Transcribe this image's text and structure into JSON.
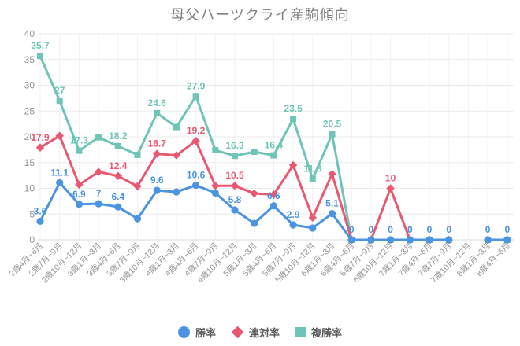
{
  "title": "母父ハーツクライ産駒傾向",
  "colors": {
    "background": "#ffffff",
    "title_text": "#7f7f7f",
    "axis_text": "#949494",
    "grid_line": "#ebebeb",
    "zero_line": "#d9d9d9",
    "vertical_grid": "#f2f2f2",
    "legend_text": "#595959",
    "win_rate_blue": "#4b94e2",
    "quinella_red": "#e85871",
    "show_teal": "#6ec4b6"
  },
  "chart_data": {
    "type": "line",
    "title": "母父ハーツクライ産駒傾向",
    "legend_position": "bottom",
    "grid": true,
    "x_axis": {
      "label_rotation": -45
    },
    "y_axis": {
      "min": 0,
      "max": 40,
      "step": 5,
      "tick_labels": [
        "0",
        "5",
        "10",
        "15",
        "20",
        "25",
        "30",
        "35",
        "40"
      ]
    },
    "categories": [
      "2歳4月~6月",
      "2歳7月~9月",
      "2歳10月~12月",
      "3歳1月~3月",
      "3歳4月~6月",
      "3歳7月~9月",
      "3歳10月~12月",
      "4歳1月~3月",
      "4歳4月~6月",
      "4歳7月~9月",
      "4歳10月~12月",
      "5歳1月~3月",
      "5歳4月~6月",
      "5歳7月~9月",
      "5歳10月~12月",
      "6歳1月~3月",
      "6歳4月~6月",
      "6歳7月~9月",
      "6歳10月~12月",
      "7歳1月~3月",
      "7歳4月~6月",
      "7歳7月~9月",
      "7歳10月~12月",
      "8歳1月~3月",
      "8歳4月~6月"
    ],
    "series": [
      {
        "name": "勝率",
        "color": "#4b94e2",
        "marker": "circle",
        "values": [
          3.6,
          11.1,
          6.9,
          7,
          6.4,
          4.1,
          9.6,
          9.3,
          10.6,
          9.1,
          5.8,
          3.2,
          6.6,
          2.9,
          2.3,
          5.1,
          0,
          0,
          0,
          0,
          0,
          0,
          null,
          0,
          0
        ],
        "point_labels": [
          "3.6",
          "11.1",
          "6.9",
          "7",
          "6.4",
          "",
          "9.6",
          "",
          "10.6",
          "",
          "5.8",
          "",
          "6.6",
          "2.9",
          "",
          "5.1",
          "0",
          "0",
          "0",
          "0",
          "0",
          "0",
          "",
          "0",
          "0"
        ]
      },
      {
        "name": "連対率",
        "color": "#e85871",
        "marker": "diamond",
        "values": [
          17.9,
          20.2,
          10.7,
          13.2,
          12.4,
          10.4,
          16.7,
          16.4,
          19.2,
          10.5,
          10.5,
          9.0,
          8.8,
          14.5,
          4.3,
          12.8,
          0,
          0,
          10,
          0,
          0,
          0,
          null,
          0,
          0
        ],
        "point_labels": [
          "17.9",
          "",
          "",
          "",
          "12.4",
          "",
          "16.7",
          "",
          "19.2",
          "",
          "10.5",
          "",
          "",
          "",
          "",
          "",
          "",
          "",
          "10",
          "",
          "",
          "",
          "",
          "",
          ""
        ]
      },
      {
        "name": "複勝率",
        "color": "#6ec4b6",
        "marker": "square",
        "values": [
          35.7,
          27,
          17.3,
          19.9,
          18.2,
          16.5,
          24.6,
          21.9,
          27.9,
          17.4,
          16.3,
          17.1,
          16.4,
          23.5,
          11.8,
          20.5,
          0,
          0,
          0,
          0,
          0,
          0,
          null,
          0,
          0
        ],
        "point_labels": [
          "35.7",
          "27",
          "17.3",
          "",
          "18.2",
          "",
          "24.6",
          "",
          "27.9",
          "",
          "16.3",
          "",
          "16.4",
          "23.5",
          "11.8",
          "20.5",
          "",
          "",
          "",
          "",
          "",
          "",
          "",
          "",
          ""
        ]
      }
    ]
  }
}
